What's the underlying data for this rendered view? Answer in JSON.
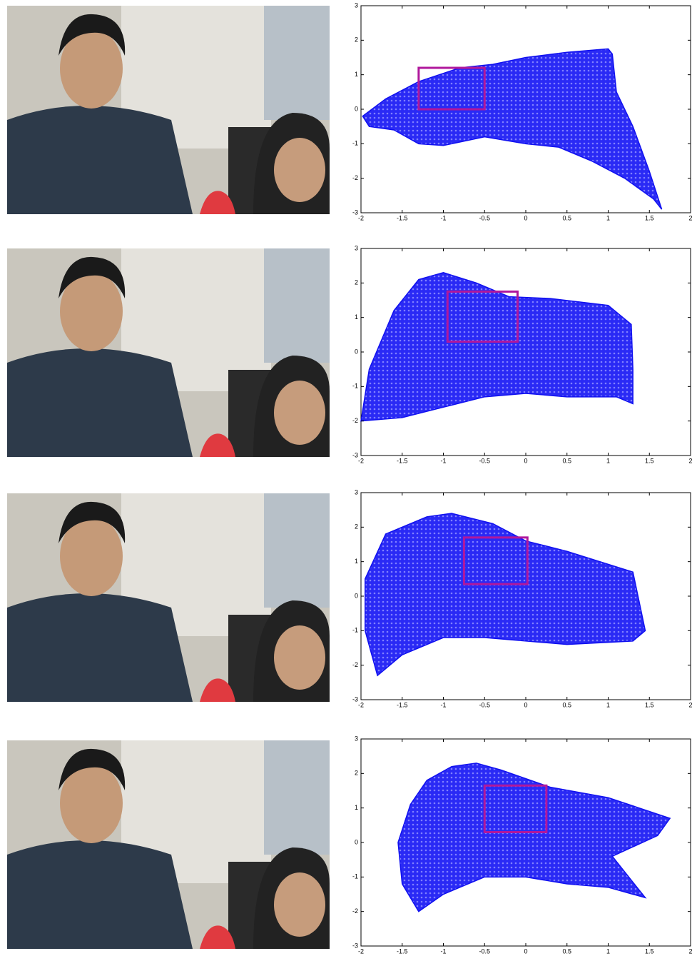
{
  "chart_data": [
    {
      "type": "scatter",
      "xlim": [
        -2,
        2
      ],
      "ylim": [
        -3,
        3
      ],
      "xticks": [
        -2,
        -1.5,
        -1,
        -0.5,
        0,
        0.5,
        1,
        1.5,
        2
      ],
      "yticks": [
        -3,
        -2,
        -1,
        0,
        1,
        2,
        3
      ],
      "series": [
        {
          "color": "#1010f0",
          "x": [
            -1.98,
            -1.7,
            -1.3,
            -0.8,
            -0.4,
            0,
            0.5,
            1.0,
            1.05,
            1.1,
            1.3,
            1.5,
            1.65,
            1.55,
            1.2,
            0.8,
            0.4,
            0,
            -0.5,
            -1,
            -1.3,
            -1.6,
            -1.9
          ],
          "values": [
            -0.2,
            0.3,
            0.8,
            1.2,
            1.3,
            1.5,
            1.65,
            1.75,
            1.6,
            0.5,
            -0.5,
            -1.8,
            -2.9,
            -2.6,
            -2.0,
            -1.5,
            -1.1,
            -1.0,
            -0.8,
            -1.05,
            -1.0,
            -0.6,
            -0.5
          ]
        }
      ],
      "box": {
        "color": "#b0189c",
        "x": [
          -1.3,
          -0.5
        ],
        "y": [
          0,
          1.2
        ]
      }
    },
    {
      "type": "scatter",
      "xlim": [
        -2,
        2
      ],
      "ylim": [
        -3,
        3
      ],
      "xticks": [
        -2,
        -1.5,
        -1,
        -0.5,
        0,
        0.5,
        1,
        1.5,
        2
      ],
      "yticks": [
        -3,
        -2,
        -1,
        0,
        1,
        2,
        3
      ],
      "series": [
        {
          "color": "#1010f0",
          "x": [
            -2,
            -1.9,
            -1.6,
            -1.3,
            -1.0,
            -0.6,
            -0.2,
            0.3,
            1.0,
            1.28,
            1.3,
            1.3,
            1.1,
            0.5,
            0,
            -0.5,
            -1.0,
            -1.5
          ],
          "values": [
            -2.0,
            -0.5,
            1.2,
            2.1,
            2.3,
            2.0,
            1.6,
            1.55,
            1.35,
            0.8,
            -0.5,
            -1.5,
            -1.3,
            -1.3,
            -1.2,
            -1.3,
            -1.6,
            -1.9
          ]
        }
      ],
      "box": {
        "color": "#b0189c",
        "x": [
          -0.95,
          -0.1
        ],
        "y": [
          0.3,
          1.75
        ]
      }
    },
    {
      "type": "scatter",
      "xlim": [
        -2,
        2
      ],
      "ylim": [
        -3,
        3
      ],
      "xticks": [
        -2,
        -1.5,
        -1,
        -0.5,
        0,
        0.5,
        1,
        1.5,
        2
      ],
      "yticks": [
        -3,
        -2,
        -1,
        0,
        1,
        2,
        3
      ],
      "series": [
        {
          "color": "#1010f0",
          "x": [
            -1.95,
            -1.7,
            -1.2,
            -0.9,
            -0.4,
            0,
            0.5,
            1.3,
            1.45,
            1.3,
            0.5,
            -0.5,
            -1.0,
            -1.5,
            -1.8,
            -1.95
          ],
          "values": [
            0.5,
            1.8,
            2.3,
            2.4,
            2.1,
            1.6,
            1.3,
            0.7,
            -1.0,
            -1.3,
            -1.4,
            -1.2,
            -1.2,
            -1.7,
            -2.3,
            -1.0
          ]
        }
      ],
      "box": {
        "color": "#b0189c",
        "x": [
          -0.75,
          0.02
        ],
        "y": [
          0.35,
          1.7
        ]
      }
    },
    {
      "type": "scatter",
      "xlim": [
        -2,
        2
      ],
      "ylim": [
        -3,
        3
      ],
      "xticks": [
        -2,
        -1.5,
        -1,
        -0.5,
        0,
        0.5,
        1,
        1.5,
        2
      ],
      "yticks": [
        -3,
        -2,
        -1,
        0,
        1,
        2,
        3
      ],
      "series": [
        {
          "color": "#1010f0",
          "x": [
            -1.55,
            -1.4,
            -1.2,
            -0.9,
            -0.6,
            -0.3,
            0.3,
            1.0,
            1.75,
            1.6,
            1.05,
            1.45,
            1.0,
            0.5,
            0,
            -0.5,
            -1,
            -1.3,
            -1.5
          ],
          "values": [
            0,
            1.1,
            1.8,
            2.2,
            2.3,
            2.1,
            1.6,
            1.3,
            0.7,
            0.2,
            -0.4,
            -1.6,
            -1.3,
            -1.2,
            -1.0,
            -1.0,
            -1.5,
            -2.0,
            -1.2
          ]
        }
      ],
      "box": {
        "color": "#b0189c",
        "x": [
          -0.5,
          0.25
        ],
        "y": [
          0.3,
          1.65
        ]
      }
    }
  ]
}
